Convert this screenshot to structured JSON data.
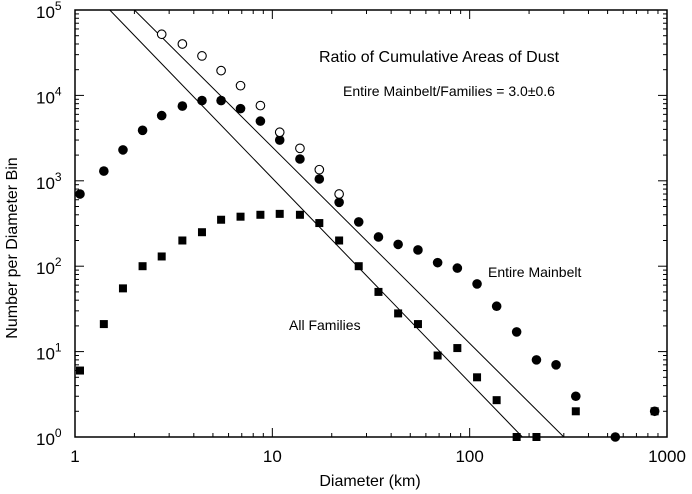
{
  "chart_data": {
    "type": "scatter",
    "title": "Ratio of Cumulative Areas of Dust",
    "subtitle": "Entire Mainbelt/Families = 3.0±0.6",
    "xlabel": "Diameter (km)",
    "ylabel": "Number per Diameter Bin",
    "x_scale": "log",
    "y_scale": "log",
    "xlim": [
      1,
      1000
    ],
    "ylim": [
      1,
      100000
    ],
    "x_ticks": [
      {
        "value": 1,
        "label": "1"
      },
      {
        "value": 10,
        "label": "10"
      },
      {
        "value": 100,
        "label": "100"
      },
      {
        "value": 1000,
        "label": "1000"
      }
    ],
    "y_ticks": [
      {
        "value": 1,
        "base": "10",
        "exp": "0"
      },
      {
        "value": 10,
        "base": "10",
        "exp": "1"
      },
      {
        "value": 100,
        "base": "10",
        "exp": "2"
      },
      {
        "value": 1000,
        "base": "10",
        "exp": "3"
      },
      {
        "value": 10000,
        "base": "10",
        "exp": "4"
      },
      {
        "value": 100000,
        "base": "10",
        "exp": "5"
      }
    ],
    "annotations": [
      {
        "text": "Entire Mainbelt",
        "at": [
          230,
          125
        ]
      },
      {
        "text": "All Families",
        "at": [
          12,
          20
        ]
      }
    ],
    "series": [
      {
        "marker": "filled-circle",
        "points": [
          [
            1.06,
            700
          ],
          [
            1.4,
            1300
          ],
          [
            1.75,
            2300
          ],
          [
            2.2,
            3900
          ],
          [
            2.75,
            5800
          ],
          [
            3.5,
            7500
          ],
          [
            4.4,
            8700
          ],
          [
            5.5,
            8700
          ],
          [
            6.9,
            7000
          ],
          [
            8.7,
            5000
          ],
          [
            10.9,
            3000
          ],
          [
            13.8,
            1800
          ],
          [
            17.3,
            1050
          ],
          [
            21.8,
            560
          ],
          [
            27.4,
            330
          ],
          [
            34.5,
            220
          ],
          [
            43.4,
            180
          ],
          [
            54.7,
            155
          ],
          [
            68.8,
            110
          ],
          [
            86.6,
            95
          ],
          [
            109,
            62
          ],
          [
            137,
            34
          ],
          [
            173,
            17
          ],
          [
            218,
            8
          ],
          [
            274,
            7
          ],
          [
            345,
            3
          ],
          [
            547,
            1
          ],
          [
            866,
            2
          ]
        ]
      },
      {
        "marker": "open-circle",
        "points": [
          [
            2.75,
            52000
          ],
          [
            3.5,
            40000
          ],
          [
            4.4,
            29000
          ],
          [
            5.5,
            19500
          ],
          [
            6.9,
            13000
          ],
          [
            8.7,
            7600
          ],
          [
            10.9,
            3700
          ],
          [
            13.8,
            2400
          ],
          [
            17.3,
            1350
          ],
          [
            21.8,
            700
          ]
        ]
      },
      {
        "marker": "filled-square",
        "points": [
          [
            1.06,
            6
          ],
          [
            1.4,
            21
          ],
          [
            1.75,
            55
          ],
          [
            2.2,
            100
          ],
          [
            2.75,
            130
          ],
          [
            3.5,
            200
          ],
          [
            4.4,
            250
          ],
          [
            5.5,
            350
          ],
          [
            6.9,
            380
          ],
          [
            8.7,
            400
          ],
          [
            10.9,
            410
          ],
          [
            13.8,
            400
          ],
          [
            17.3,
            320
          ],
          [
            21.8,
            200
          ],
          [
            27.4,
            100
          ],
          [
            34.5,
            50
          ],
          [
            43.4,
            28
          ],
          [
            54.7,
            21
          ],
          [
            68.8,
            9
          ],
          [
            86.6,
            11
          ],
          [
            109,
            5
          ],
          [
            137,
            2.7
          ],
          [
            173,
            1
          ],
          [
            218,
            1
          ],
          [
            345,
            2
          ],
          [
            866,
            2
          ]
        ]
      }
    ],
    "fit_lines": [
      {
        "points": [
          [
            2.0,
            100000
          ],
          [
            300,
            1
          ]
        ]
      },
      {
        "points": [
          [
            1.5,
            100000
          ],
          [
            185,
            1
          ]
        ]
      }
    ]
  }
}
